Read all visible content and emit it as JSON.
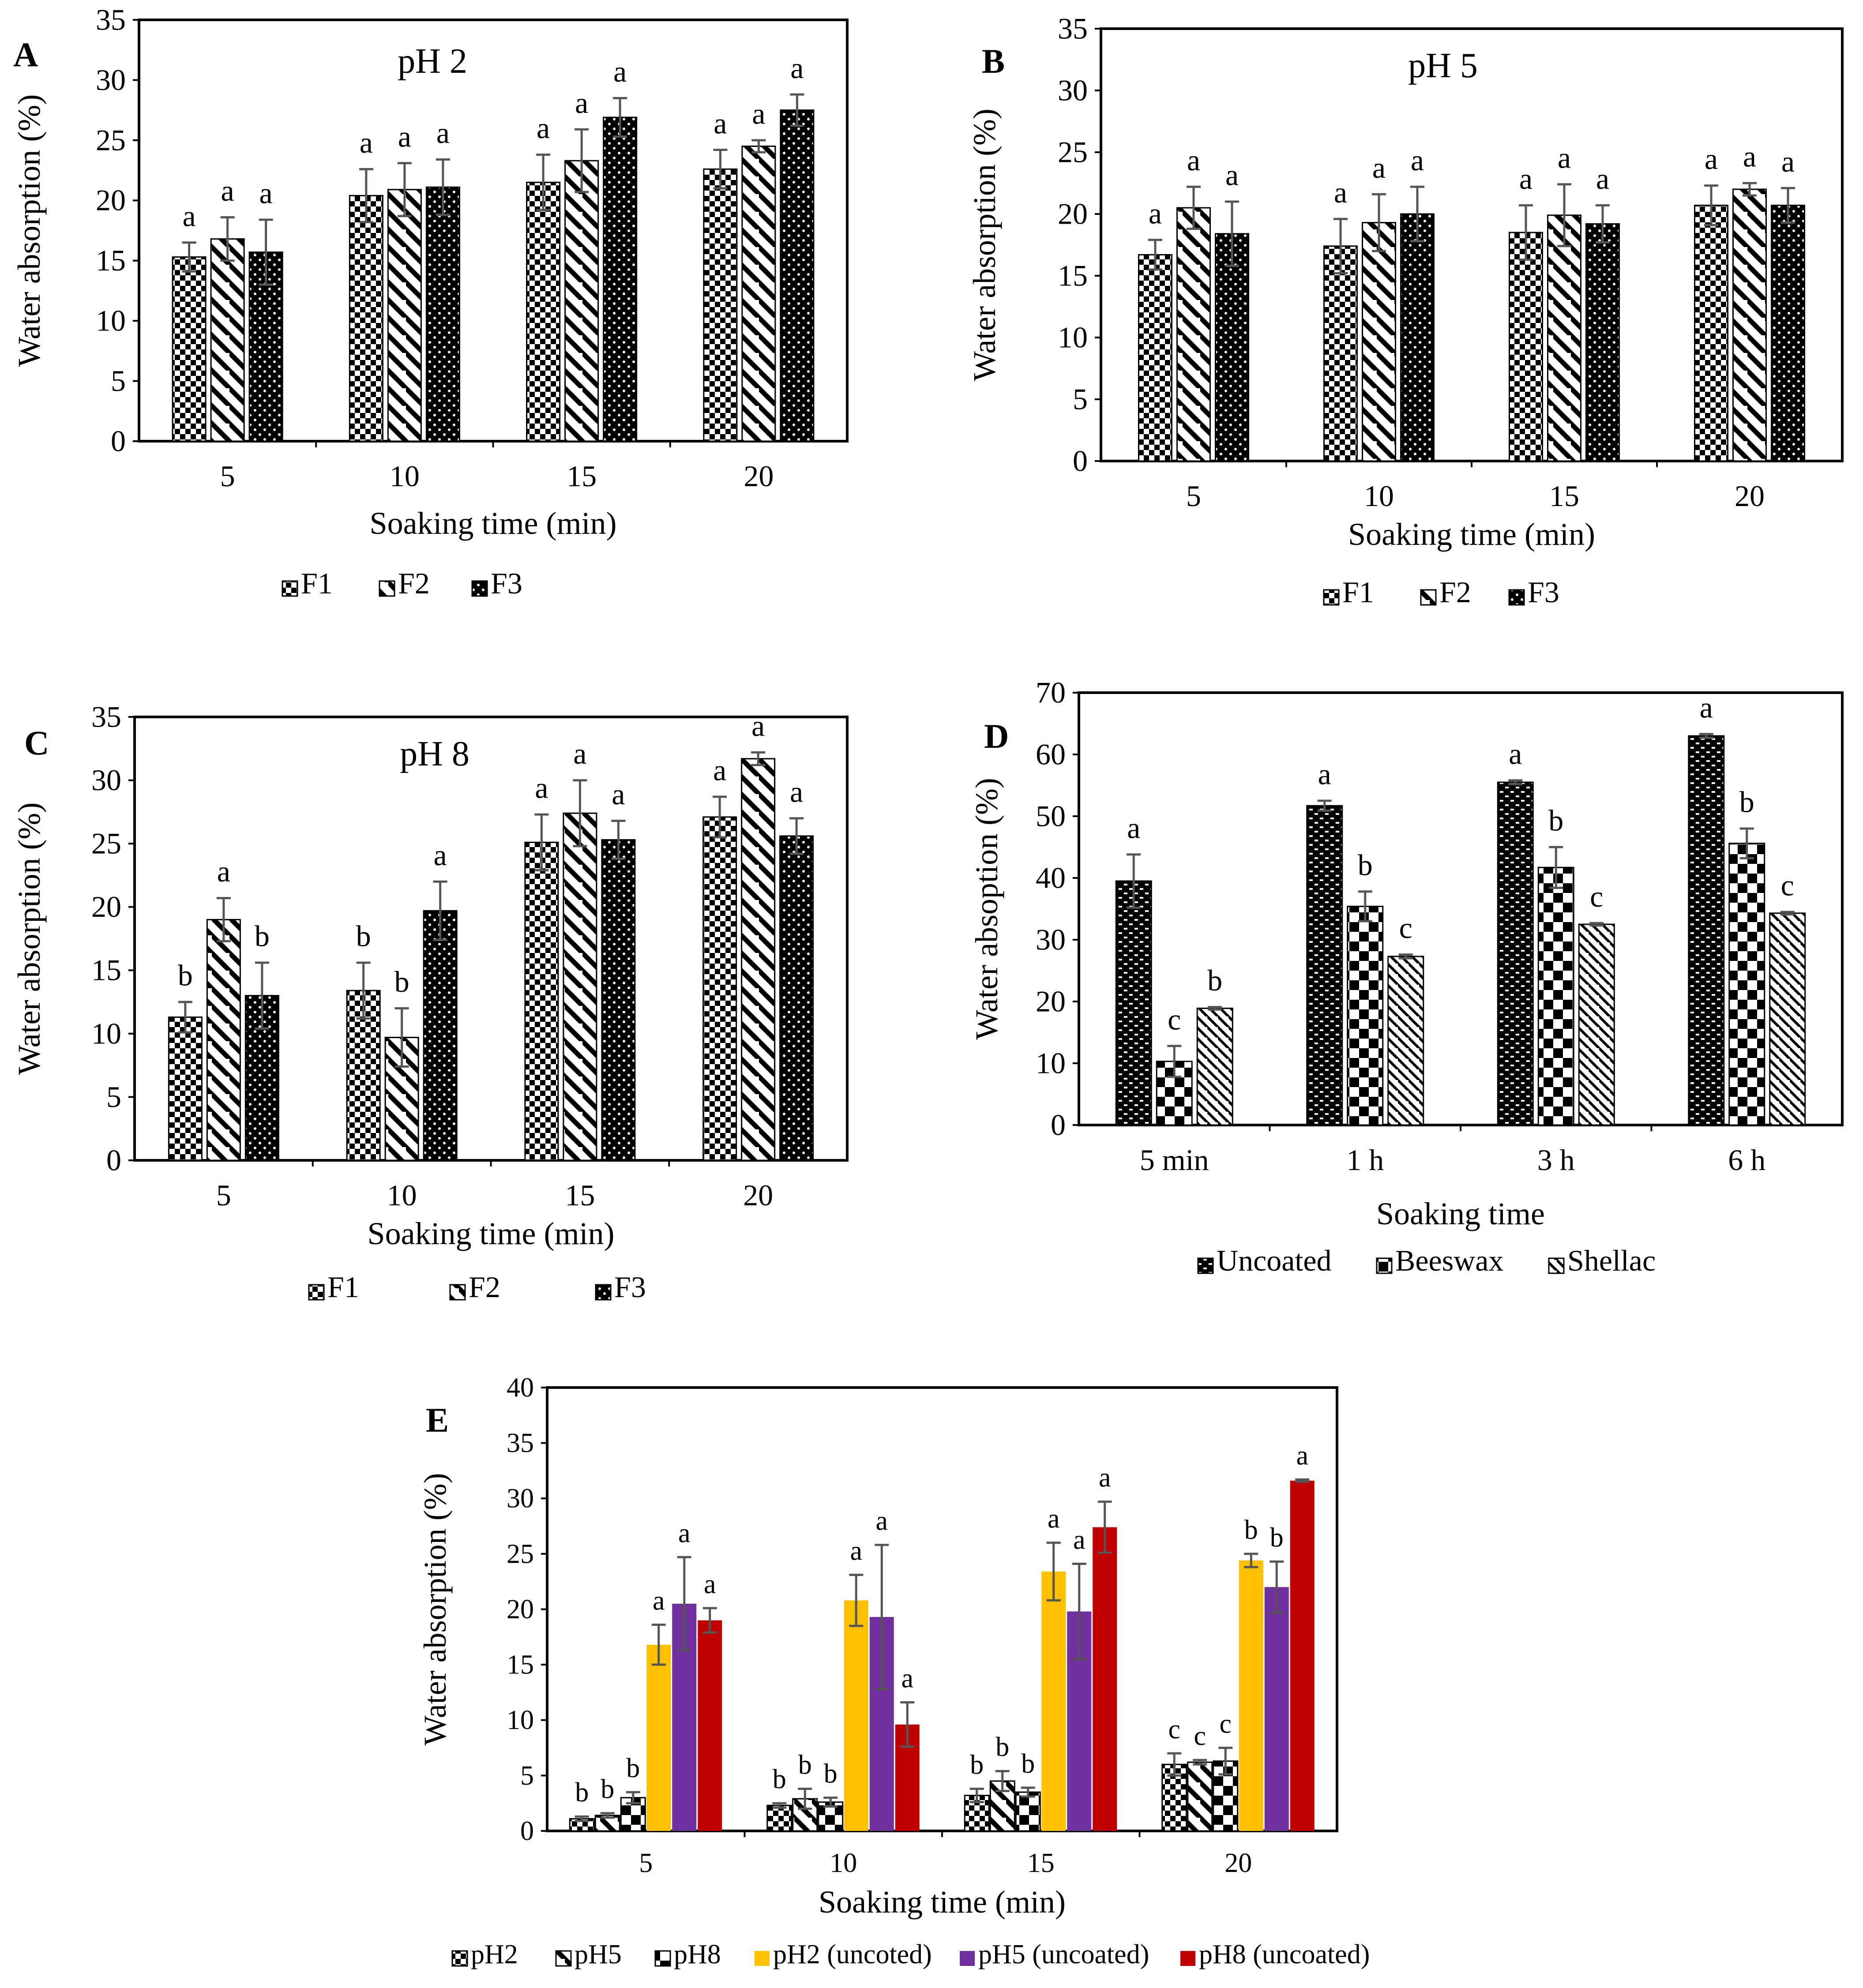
{
  "chart_data": [
    {
      "panel_label": "A",
      "type": "bar",
      "title": "pH 2",
      "xlabel": "Soaking time (min)",
      "ylabel": "Water absorption (%)",
      "ylim": [
        0,
        35
      ],
      "yticks": [
        "0",
        "5",
        "10",
        "15",
        "20",
        "25",
        "30",
        "35"
      ],
      "categories": [
        "5",
        "10",
        "15",
        "20"
      ],
      "legend_position": "bottom",
      "series": [
        {
          "name": "F1",
          "pattern": "checker-small",
          "values": [
            15.3,
            20.4,
            21.5,
            22.6
          ],
          "errors": [
            1.2,
            2.2,
            2.3,
            1.6
          ],
          "letters": [
            "a",
            "a",
            "a",
            "a"
          ]
        },
        {
          "name": "F2",
          "pattern": "diag-wide",
          "values": [
            16.8,
            20.9,
            23.3,
            24.5
          ],
          "errors": [
            1.8,
            2.2,
            2.6,
            0.5
          ],
          "letters": [
            "a",
            "a",
            "a",
            "a"
          ]
        },
        {
          "name": "F3",
          "pattern": "dots-dark",
          "values": [
            15.7,
            21.1,
            26.9,
            27.5
          ],
          "errors": [
            2.7,
            2.3,
            1.6,
            1.3
          ],
          "letters": [
            "a",
            "a",
            "a",
            "a"
          ]
        }
      ]
    },
    {
      "panel_label": "B",
      "type": "bar",
      "title": "pH 5",
      "xlabel": "Soaking time (min)",
      "ylabel": "Water absorption (%)",
      "ylim": [
        0,
        35
      ],
      "yticks": [
        "0",
        "5",
        "10",
        "15",
        "20",
        "25",
        "30",
        "35"
      ],
      "categories": [
        "5",
        "10",
        "15",
        "20"
      ],
      "legend_position": "bottom",
      "series": [
        {
          "name": "F1",
          "pattern": "checker-small",
          "values": [
            16.7,
            17.4,
            18.5,
            20.7
          ],
          "errors": [
            1.2,
            2.2,
            2.2,
            1.6
          ],
          "letters": [
            "a",
            "a",
            "a",
            "a"
          ]
        },
        {
          "name": "F2",
          "pattern": "diag-wide",
          "values": [
            20.5,
            19.3,
            19.9,
            22.0
          ],
          "errors": [
            1.7,
            2.3,
            2.5,
            0.5
          ],
          "letters": [
            "a",
            "a",
            "a",
            "a"
          ]
        },
        {
          "name": "F3",
          "pattern": "dots-dark",
          "values": [
            18.4,
            20.0,
            19.2,
            20.7
          ],
          "errors": [
            2.6,
            2.2,
            1.5,
            1.4
          ],
          "letters": [
            "a",
            "a",
            "a",
            "a"
          ]
        }
      ]
    },
    {
      "panel_label": "C",
      "type": "bar",
      "title": "pH 8",
      "xlabel": "Soaking time (min)",
      "ylabel": "Water absorption (%)",
      "ylim": [
        0,
        35
      ],
      "yticks": [
        "0",
        "5",
        "10",
        "15",
        "20",
        "25",
        "30",
        "35"
      ],
      "categories": [
        "5",
        "10",
        "15",
        "20"
      ],
      "legend_position": "bottom",
      "series": [
        {
          "name": "F1",
          "pattern": "checker-small",
          "values": [
            11.3,
            13.4,
            25.1,
            27.1
          ],
          "errors": [
            1.2,
            2.2,
            2.2,
            1.6
          ],
          "letters": [
            "b",
            "b",
            "a",
            "a"
          ]
        },
        {
          "name": "F2",
          "pattern": "diag-wide",
          "values": [
            19.0,
            9.7,
            27.4,
            31.7
          ],
          "errors": [
            1.7,
            2.3,
            2.6,
            0.5
          ],
          "letters": [
            "a",
            "b",
            "a",
            "a"
          ]
        },
        {
          "name": "F3",
          "pattern": "dots-dark",
          "values": [
            13.0,
            19.7,
            25.3,
            25.6
          ],
          "errors": [
            2.6,
            2.3,
            1.5,
            1.4
          ],
          "letters": [
            "b",
            "a",
            "a",
            "a"
          ]
        }
      ]
    },
    {
      "panel_label": "D",
      "type": "bar",
      "title": "",
      "xlabel": "Soaking time",
      "ylabel": "Water absoption (%)",
      "ylim": [
        0,
        70
      ],
      "yticks": [
        "0",
        "10",
        "20",
        "30",
        "40",
        "50",
        "60",
        "70"
      ],
      "categories": [
        "5 min",
        "1 h",
        "3 h",
        "6 h"
      ],
      "legend_position": "bottom",
      "series": [
        {
          "name": "Uncoated",
          "pattern": "brick-dark",
          "values": [
            39.5,
            51.7,
            55.5,
            63.0
          ],
          "errors": [
            4.3,
            0.8,
            0.3,
            0.3
          ],
          "letters": [
            "a",
            "a",
            "a",
            "a"
          ]
        },
        {
          "name": "Beeswax",
          "pattern": "checker-large",
          "values": [
            10.3,
            35.4,
            41.7,
            45.6
          ],
          "errors": [
            2.5,
            2.4,
            3.3,
            2.4
          ],
          "letters": [
            "c",
            "b",
            "b",
            "b"
          ]
        },
        {
          "name": "Shellac",
          "pattern": "diag-narrow",
          "values": [
            18.9,
            27.3,
            32.5,
            34.3
          ],
          "errors": [
            0.2,
            0.3,
            0.2,
            0.2
          ],
          "letters": [
            "b",
            "c",
            "c",
            "c"
          ]
        }
      ]
    },
    {
      "panel_label": "E",
      "type": "bar",
      "title": "",
      "xlabel": "Soaking time (min)",
      "ylabel": "Water absorption (%)",
      "ylim": [
        0,
        40
      ],
      "yticks": [
        "0",
        "5",
        "10",
        "15",
        "20",
        "25",
        "30",
        "35",
        "40"
      ],
      "categories": [
        "5",
        "10",
        "15",
        "20"
      ],
      "legend_position": "bottom",
      "series": [
        {
          "name": "pH2",
          "pattern": "checker-small",
          "values": [
            1.1,
            2.3,
            3.2,
            6.0
          ],
          "errors": [
            0.2,
            0.2,
            0.6,
            1.0
          ],
          "letters": [
            "b",
            "b",
            "b",
            "c"
          ]
        },
        {
          "name": "pH5",
          "pattern": "diag-wide",
          "values": [
            1.4,
            2.9,
            4.5,
            6.2
          ],
          "errors": [
            0.2,
            0.9,
            0.9,
            0.2
          ],
          "letters": [
            "b",
            "b",
            "b",
            "c"
          ]
        },
        {
          "name": "pH8",
          "pattern": "checker-large",
          "values": [
            3.0,
            2.6,
            3.5,
            6.3
          ],
          "errors": [
            0.5,
            0.4,
            0.4,
            1.2
          ],
          "letters": [
            "b",
            "b",
            "b",
            "c"
          ]
        },
        {
          "name": "pH2 (uncoted)",
          "color": "#FFC000",
          "values": [
            16.8,
            20.8,
            23.4,
            24.4
          ],
          "errors": [
            1.8,
            2.3,
            2.6,
            0.6
          ],
          "letters": [
            "a",
            "a",
            "a",
            "b"
          ]
        },
        {
          "name": "pH5 (uncoated)",
          "color": "#7030A0",
          "values": [
            20.5,
            19.3,
            19.8,
            22.0
          ],
          "errors": [
            4.2,
            6.5,
            4.3,
            2.3
          ],
          "letters": [
            "a",
            "a",
            "a",
            "b"
          ]
        },
        {
          "name": "pH8 (uncoated)",
          "color": "#C00000",
          "values": [
            19.0,
            9.6,
            27.4,
            31.6
          ],
          "errors": [
            1.1,
            2.0,
            2.3,
            0.1
          ],
          "letters": [
            "a",
            "a",
            "a",
            "a"
          ]
        }
      ]
    }
  ]
}
